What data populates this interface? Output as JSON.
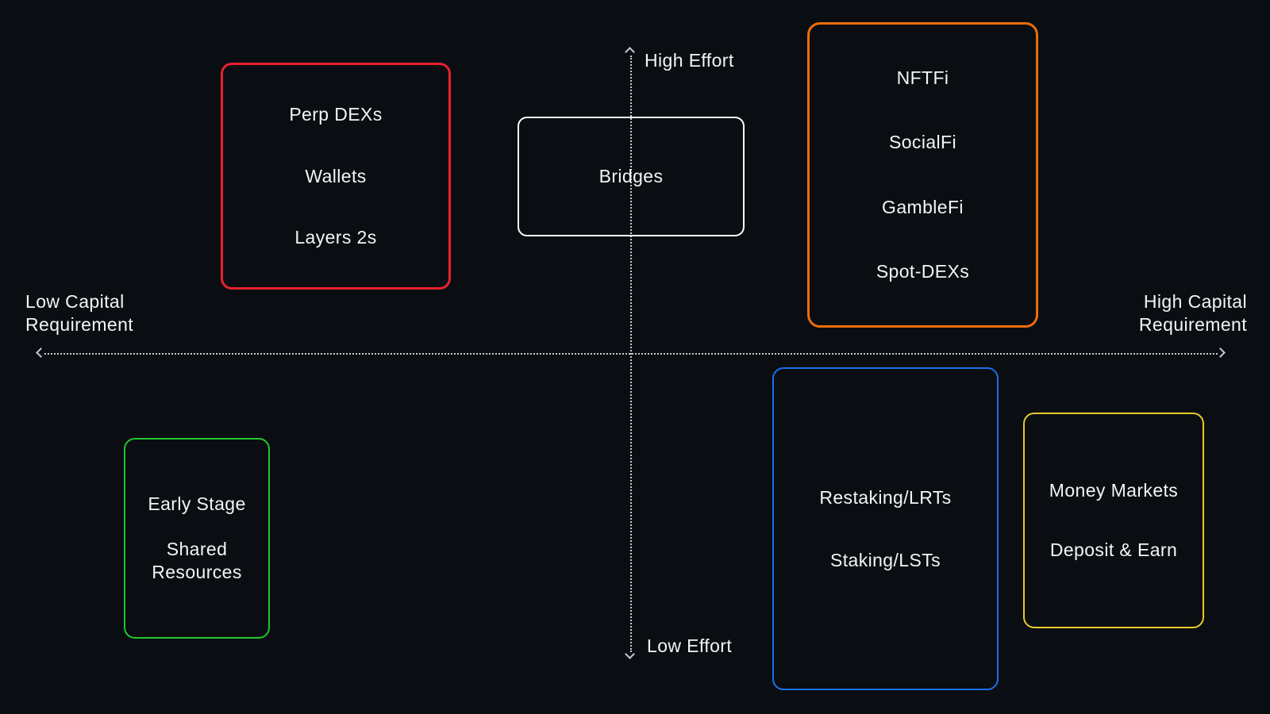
{
  "colors": {
    "background": "#0a0e13",
    "axis": "#c9cdd2",
    "text": "#f3f4f5",
    "red": "#e8212e",
    "white": "#ffffff",
    "orange": "#ed6c0c",
    "green": "#1fc62e",
    "blue": "#1d6fe8",
    "yellow": "#e9c926"
  },
  "axes": {
    "vertical": {
      "top_label": "High Effort",
      "bottom_label": "Low Effort"
    },
    "horizontal": {
      "left_label_line1": "Low Capital",
      "left_label_line2": "Requirement",
      "right_label_line1": "High Capital",
      "right_label_line2": "Requirement"
    }
  },
  "groups": [
    {
      "name": "perp-dexs-wallets-layer2s",
      "border_color": "#e8212e",
      "items": [
        "Perp DEXs",
        "Wallets",
        "Layers 2s"
      ]
    },
    {
      "name": "bridges",
      "border_color": "#ffffff",
      "items": [
        "Bridges"
      ]
    },
    {
      "name": "nftfi-socialfi-gamblefi-spotdexs",
      "border_color": "#ed6c0c",
      "items": [
        "NFTFi",
        "SocialFi",
        "GambleFi",
        "Spot-DEXs"
      ]
    },
    {
      "name": "early-stage-shared-resources",
      "border_color": "#1fc62e",
      "items": [
        "Early Stage",
        "Shared Resources"
      ]
    },
    {
      "name": "restaking-staking",
      "border_color": "#1d6fe8",
      "items": [
        "Restaking/LRTs",
        "Staking/LSTs"
      ]
    },
    {
      "name": "money-markets-deposit-earn",
      "border_color": "#e9c926",
      "items": [
        "Money Markets",
        "Deposit & Earn"
      ]
    }
  ]
}
